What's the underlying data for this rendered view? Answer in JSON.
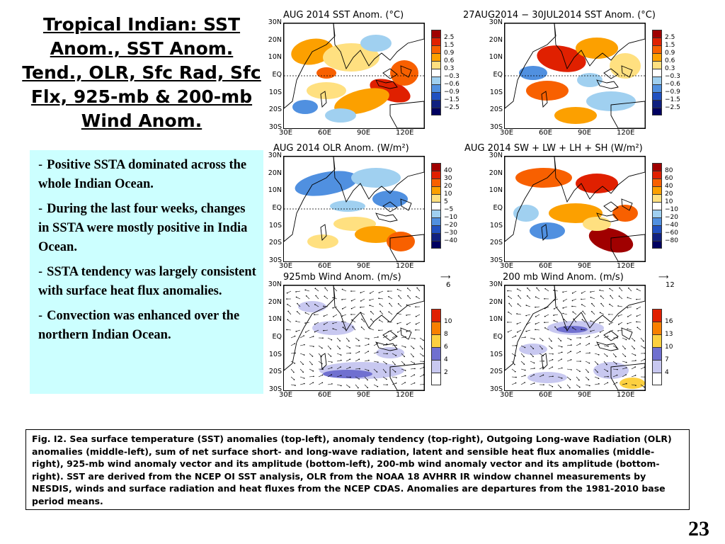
{
  "slide": {
    "title": "Tropical Indian: SST Anom., SST Anom. Tend., OLR, Sfc Rad, Sfc Flx, 925-mb & 200-mb Wind Anom.",
    "bullets": [
      "Positive SSTA dominated across the whole Indian Ocean.",
      "During the last four weeks, changes in SSTA were mostly positive in India Ocean.",
      "SSTA tendency was largely consistent with surface heat flux anomalies.",
      "Convection was enhanced over the northern  Indian Ocean."
    ],
    "bullet_marker": "-",
    "caption": "Fig. I2. Sea surface temperature (SST) anomalies (top-left), anomaly tendency (top-right), Outgoing Long-wave Radiation (OLR) anomalies (middle-left), sum of net surface short- and long-wave radiation, latent and sensible heat flux anomalies (middle-right), 925-mb wind anomaly vector and its amplitude (bottom-left), 200-mb wind anomaly vector and its amplitude  (bottom-right). SST are derived from the NCEP OI SST analysis, OLR from the NOAA 18 AVHRR IR window channel measurements by NESDIS, winds and surface radiation and heat fluxes from the NCEP CDAS. Anomalies are  departures from the 1981-2010 base period means.",
    "page_number": "23"
  },
  "axes": {
    "lat_labels": [
      "30N",
      "20N",
      "10N",
      "EQ",
      "10S",
      "20S",
      "30S"
    ],
    "lon_labels": [
      "30E",
      "60E",
      "90E",
      "120E"
    ]
  },
  "panels": [
    {
      "title": "AUG 2014 SST Anom. (°C)",
      "field": "sst",
      "legend_labels": [
        "2.5",
        "1.5",
        "0.9",
        "0.6",
        "0.3",
        "−0.3",
        "−0.6",
        "−0.9",
        "−1.5",
        "−2.5"
      ],
      "legend_colors": [
        "#a00000",
        "#e02000",
        "#f86000",
        "#fca000",
        "#ffe080",
        "#ffffff",
        "#a0d0f0",
        "#5090e0",
        "#2050c0",
        "#102080",
        "#000060"
      ]
    },
    {
      "title": "27AUG2014 − 30JUL2014 SST Anom. (°C)",
      "field": "tend",
      "legend_labels": [
        "2.5",
        "1.5",
        "0.9",
        "0.6",
        "0.3",
        "−0.3",
        "−0.6",
        "−0.9",
        "−1.5",
        "−2.5"
      ],
      "legend_colors": [
        "#a00000",
        "#e02000",
        "#f86000",
        "#fca000",
        "#ffe080",
        "#ffffff",
        "#a0d0f0",
        "#5090e0",
        "#2050c0",
        "#102080",
        "#000060"
      ]
    },
    {
      "title": "AUG 2014 OLR Anom. (W/m²)",
      "field": "olr",
      "legend_labels": [
        "40",
        "30",
        "20",
        "10",
        "5",
        "−5",
        "−10",
        "−20",
        "−30",
        "−40"
      ],
      "legend_colors": [
        "#a00000",
        "#e02000",
        "#f86000",
        "#fca000",
        "#ffe080",
        "#ffffff",
        "#a0d0f0",
        "#5090e0",
        "#2050c0",
        "#102080",
        "#000060"
      ]
    },
    {
      "title": "AUG 2014 SW + LW + LH + SH (W/m²)",
      "field": "flux",
      "legend_labels": [
        "80",
        "60",
        "40",
        "20",
        "10",
        "−10",
        "−20",
        "−40",
        "−60",
        "−80"
      ],
      "legend_colors": [
        "#a00000",
        "#e02000",
        "#f86000",
        "#fca000",
        "#ffe080",
        "#ffffff",
        "#a0d0f0",
        "#5090e0",
        "#2050c0",
        "#102080",
        "#000060"
      ]
    },
    {
      "title": "925mb Wind Anom. (m/s)",
      "field": "w925",
      "ref_vector": "6",
      "legend_labels": [
        "10",
        "8",
        "6",
        "4",
        "2"
      ],
      "legend_colors": [
        "#e02000",
        "#f88000",
        "#fcd040",
        "#7070d0",
        "#c8c8f0",
        "#ffffff"
      ]
    },
    {
      "title": "200 mb Wind Anom. (m/s)",
      "field": "w200",
      "ref_vector": "12",
      "legend_labels": [
        "16",
        "13",
        "10",
        "7",
        "4"
      ],
      "legend_colors": [
        "#e02000",
        "#f88000",
        "#fcd040",
        "#7070d0",
        "#c8c8f0",
        "#ffffff"
      ]
    }
  ],
  "colors": {
    "bullet_box": "#ccffff",
    "land_outline": "#000000"
  }
}
